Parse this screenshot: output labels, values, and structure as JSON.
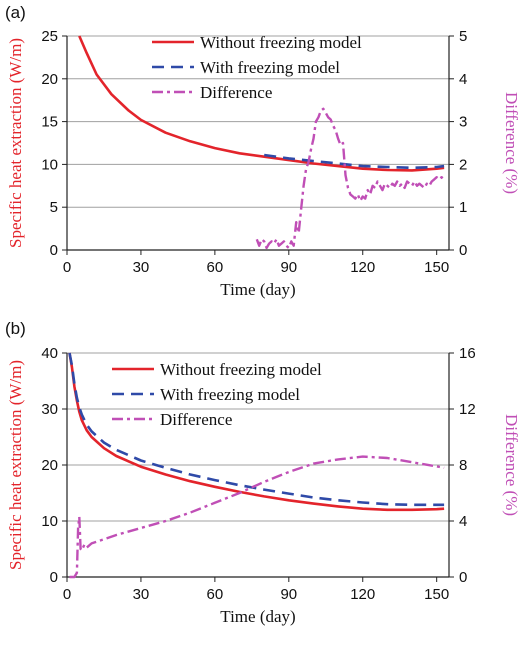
{
  "colors": {
    "without": "#e3242b",
    "with": "#2f4aa8",
    "difference": "#c04fb6",
    "grid": "#a0a0a0",
    "left_axis": "#e3242b",
    "right_axis": "#c04fb6"
  },
  "chart_data": [
    {
      "type": "line",
      "panel_label": "(a)",
      "title": "",
      "xlabel": "Time (day)",
      "ylabel": "Specific heat extraction (W/m)",
      "y2label": "Difference (%)",
      "xlim": [
        0,
        155
      ],
      "ylim": [
        0,
        25
      ],
      "y2lim": [
        0,
        5
      ],
      "xticks": [
        "0",
        "30",
        "60",
        "90",
        "120",
        "150"
      ],
      "yticks": [
        "0",
        "5",
        "10",
        "15",
        "20",
        "25"
      ],
      "y2ticks": [
        "0",
        "1",
        "2",
        "3",
        "4",
        "5"
      ],
      "grid": true,
      "legend_position": "top-center",
      "series": [
        {
          "name": "Without freezing model",
          "axis": "left",
          "style": "solid",
          "x": [
            5,
            8,
            12,
            18,
            25,
            30,
            40,
            50,
            60,
            70,
            80,
            90,
            100,
            110,
            120,
            130,
            140,
            150,
            153
          ],
          "y": [
            25,
            23,
            20.5,
            18.2,
            16.3,
            15.2,
            13.7,
            12.7,
            11.9,
            11.3,
            10.9,
            10.5,
            10.1,
            9.8,
            9.5,
            9.35,
            9.3,
            9.5,
            9.6
          ]
        },
        {
          "name": "With freezing model",
          "axis": "left",
          "style": "dashed",
          "x": [
            80,
            90,
            100,
            110,
            120,
            130,
            140,
            150,
            153
          ],
          "y": [
            11.1,
            10.7,
            10.4,
            10.1,
            9.8,
            9.7,
            9.6,
            9.7,
            9.8
          ]
        },
        {
          "name": "Difference",
          "axis": "right",
          "style": "dashdot",
          "x": [
            77,
            78,
            79,
            80,
            81,
            82,
            83,
            84,
            85,
            86,
            87,
            88,
            89,
            90,
            91,
            92,
            93,
            94,
            95,
            96,
            97,
            98,
            99,
            100,
            101,
            102,
            103,
            104,
            105,
            106,
            107,
            108,
            109,
            110,
            111,
            112,
            113,
            114,
            115,
            116,
            117,
            118,
            119,
            120,
            121,
            122,
            123,
            124,
            125,
            126,
            127,
            128,
            129,
            130,
            131,
            132,
            133,
            134,
            135,
            136,
            137,
            138,
            139,
            140,
            141,
            142,
            143,
            144,
            145,
            146,
            147,
            148,
            149,
            150,
            151,
            152,
            153
          ],
          "y": [
            0.25,
            0.1,
            0.25,
            0.2,
            0.05,
            0.15,
            0.2,
            0.15,
            0.25,
            0.1,
            0.15,
            0.2,
            0.1,
            0.05,
            0.2,
            0.1,
            0.65,
            0.4,
            0.95,
            1.5,
            1.9,
            2.05,
            2.35,
            2.6,
            3.0,
            3.1,
            3.25,
            3.3,
            3.2,
            3.1,
            3.05,
            2.9,
            2.8,
            2.6,
            2.45,
            2.5,
            1.75,
            1.45,
            1.3,
            1.25,
            1.2,
            1.3,
            1.15,
            1.25,
            1.2,
            1.4,
            1.3,
            1.5,
            1.45,
            1.6,
            1.5,
            1.4,
            1.55,
            1.5,
            1.45,
            1.55,
            1.5,
            1.6,
            1.5,
            1.55,
            1.45,
            1.6,
            1.55,
            1.5,
            1.6,
            1.5,
            1.55,
            1.5,
            1.45,
            1.55,
            1.5,
            1.6,
            1.65,
            1.7,
            1.65,
            1.7,
            1.65
          ]
        }
      ]
    },
    {
      "type": "line",
      "panel_label": "(b)",
      "title": "",
      "xlabel": "Time (day)",
      "ylabel": "Specific heat extraction (W/m)",
      "y2label": "Difference (%)",
      "xlim": [
        0,
        155
      ],
      "ylim": [
        0,
        40
      ],
      "y2lim": [
        0,
        16
      ],
      "xticks": [
        "0",
        "30",
        "60",
        "90",
        "120",
        "150"
      ],
      "yticks": [
        "0",
        "10",
        "20",
        "30",
        "40"
      ],
      "y2ticks": [
        "0",
        "4",
        "8",
        "12",
        "16"
      ],
      "grid": true,
      "legend_position": "top-center",
      "series": [
        {
          "name": "Without freezing model",
          "axis": "left",
          "style": "solid",
          "x": [
            1,
            2,
            3,
            4,
            5,
            6,
            8,
            10,
            15,
            20,
            30,
            40,
            50,
            60,
            70,
            80,
            90,
            100,
            110,
            120,
            130,
            140,
            150,
            153
          ],
          "y": [
            40,
            37.5,
            34,
            31.5,
            29.5,
            28,
            26.2,
            25,
            23,
            21.6,
            19.7,
            18.3,
            17.1,
            16.1,
            15.2,
            14.4,
            13.7,
            13.1,
            12.6,
            12.2,
            12.0,
            12.0,
            12.1,
            12.2
          ]
        },
        {
          "name": "With freezing model",
          "axis": "left",
          "style": "dashed",
          "x": [
            1,
            2,
            3,
            4,
            5,
            6,
            8,
            10,
            15,
            20,
            30,
            40,
            50,
            60,
            70,
            80,
            90,
            100,
            110,
            120,
            130,
            140,
            150,
            153
          ],
          "y": [
            40,
            37.8,
            34.5,
            32,
            30.3,
            29,
            27.2,
            26,
            24,
            22.7,
            20.8,
            19.5,
            18.3,
            17.3,
            16.4,
            15.6,
            14.9,
            14.2,
            13.7,
            13.3,
            13.0,
            12.9,
            12.9,
            12.9
          ]
        },
        {
          "name": "Difference",
          "axis": "right",
          "style": "dashdot",
          "x": [
            1,
            2,
            3,
            4,
            4.5,
            5,
            5.5,
            6,
            7,
            8,
            10,
            15,
            20,
            30,
            40,
            50,
            60,
            70,
            80,
            90,
            100,
            110,
            120,
            130,
            140,
            150,
            153
          ],
          "y": [
            0,
            0,
            0,
            0.3,
            3.5,
            4.3,
            2.0,
            1.9,
            2.3,
            2.1,
            2.4,
            2.7,
            3.0,
            3.5,
            4.0,
            4.6,
            5.3,
            6.0,
            6.8,
            7.5,
            8.1,
            8.4,
            8.6,
            8.5,
            8.2,
            7.9,
            7.8
          ]
        }
      ]
    }
  ]
}
